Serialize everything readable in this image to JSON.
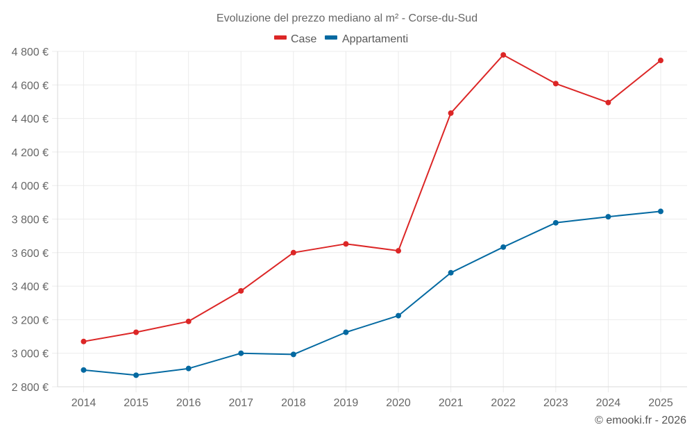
{
  "chart_data": {
    "type": "line",
    "title": "Evoluzione del prezzo mediano al m² - Corse-du-Sud",
    "xlabel": "",
    "ylabel": "",
    "x": [
      "2014",
      "2015",
      "2016",
      "2017",
      "2018",
      "2019",
      "2020",
      "2021",
      "2022",
      "2023",
      "2024",
      "2025"
    ],
    "ylim": [
      2800,
      4800
    ],
    "yticks": [
      2800,
      3000,
      3200,
      3400,
      3600,
      3800,
      4000,
      4200,
      4400,
      4600,
      4800
    ],
    "ytick_labels": [
      "2 800 €",
      "3 000 €",
      "3 200 €",
      "3 400 €",
      "3 600 €",
      "3 800 €",
      "4 000 €",
      "4 200 €",
      "4 400 €",
      "4 600 €",
      "4 800 €"
    ],
    "grid": true,
    "legend_position": "top-center",
    "series": [
      {
        "name": "Case",
        "color": "#dc2626",
        "values": [
          3070,
          3125,
          3190,
          3372,
          3600,
          3652,
          3611,
          4432,
          4779,
          4608,
          4495,
          4746
        ]
      },
      {
        "name": "Appartamenti",
        "color": "#0369a1",
        "values": [
          2900,
          2869,
          2909,
          3000,
          2993,
          3125,
          3224,
          3480,
          3633,
          3778,
          3814,
          3846
        ]
      }
    ]
  },
  "credit": "© emooki.fr - 2026"
}
